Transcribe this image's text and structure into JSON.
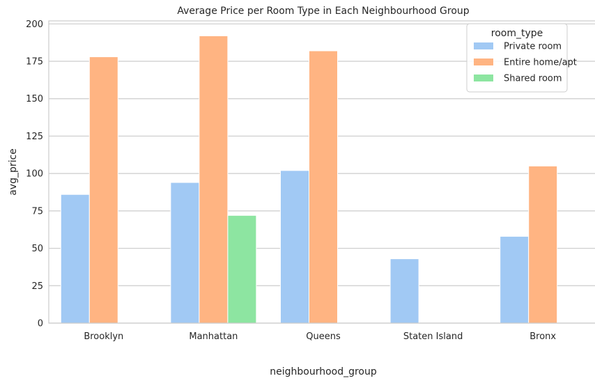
{
  "chart_data": {
    "type": "bar",
    "title": "Average Price per Room Type in Each Neighbourhood Group",
    "xlabel": "neighbourhood_group",
    "ylabel": "avg_price",
    "ylim": [
      0,
      202
    ],
    "yticks": [
      0,
      25,
      50,
      75,
      100,
      125,
      150,
      175,
      200
    ],
    "grid": true,
    "categories": [
      "Brooklyn",
      "Manhattan",
      "Queens",
      "Staten Island",
      "Bronx"
    ],
    "legend": {
      "title": "room_type",
      "position": "top-right"
    },
    "series": [
      {
        "name": "Private room",
        "color": "#a1c9f4",
        "values": [
          86,
          94,
          102,
          43,
          58
        ]
      },
      {
        "name": "Entire home/apt",
        "color": "#ffb482",
        "values": [
          178,
          192,
          182,
          null,
          105
        ]
      },
      {
        "name": "Shared room",
        "color": "#8de5a1",
        "values": [
          null,
          72,
          null,
          null,
          null
        ]
      }
    ]
  }
}
